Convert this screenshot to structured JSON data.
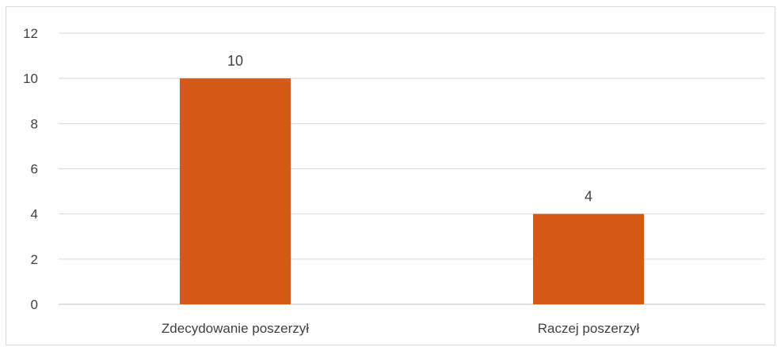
{
  "chart_data": {
    "type": "bar",
    "categories": [
      "Zdecydowanie poszerzył",
      "Raczej poszerzył"
    ],
    "values": [
      10,
      4
    ],
    "data_labels": [
      "10",
      "4"
    ],
    "title": "",
    "xlabel": "",
    "ylabel": "",
    "ylim": [
      0,
      12
    ],
    "yticks": [
      "0",
      "2",
      "4",
      "6",
      "8",
      "10",
      "12"
    ],
    "grid": true,
    "legend": "none",
    "colors": {
      "bar": "#d55a17",
      "grid": "#d9d9d9",
      "axis": "#bfbfbf",
      "text": "#404040"
    }
  }
}
